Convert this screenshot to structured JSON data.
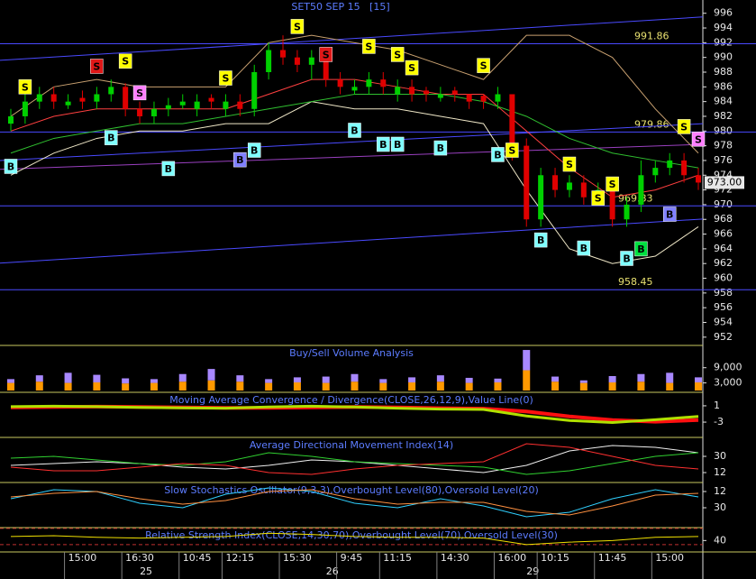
{
  "chart_data": [
    {
      "type": "candlestick",
      "title": "SET50 SEP 15   [15]",
      "categories": [
        null,
        null,
        null,
        null,
        "15:00",
        null,
        null,
        null,
        "16:30",
        null,
        null,
        null,
        "10:45",
        null,
        null,
        "12:15",
        null,
        null,
        null,
        "15:30",
        null,
        null,
        null,
        "9:45",
        null,
        null,
        "11:15",
        null,
        null,
        null,
        "14:30",
        null,
        null,
        null,
        "16:00",
        null,
        null,
        "10:15",
        null,
        null,
        null,
        "11:45",
        null,
        null,
        null,
        "15:00",
        null,
        null,
        null
      ],
      "dates": [
        null,
        null,
        null,
        null,
        null,
        null,
        null,
        null,
        null,
        "25",
        null,
        null,
        null,
        null,
        null,
        null,
        null,
        null,
        null,
        null,
        null,
        null,
        "26",
        null,
        null,
        null,
        null,
        null,
        null,
        null,
        null,
        null,
        null,
        null,
        null,
        null,
        "29",
        null,
        null,
        null,
        null,
        null,
        null,
        null,
        null,
        null,
        null,
        null,
        null
      ],
      "open": [
        981,
        982,
        984,
        985,
        983.5,
        984.5,
        984,
        985,
        986,
        983,
        982,
        983,
        983.5,
        983,
        984.5,
        983,
        984,
        983,
        988,
        991,
        990,
        989,
        990,
        987,
        985.5,
        986,
        987,
        985,
        986,
        985.5,
        984.5,
        985.5,
        985,
        984.8,
        984,
        985,
        978,
        968,
        974,
        972,
        973,
        971,
        972,
        968,
        970,
        974,
        975,
        976,
        974
      ],
      "high": [
        983,
        985,
        986,
        986,
        985,
        985.5,
        986,
        987,
        986.5,
        984,
        984,
        984.5,
        985,
        985,
        985,
        985,
        985,
        989,
        992,
        993,
        991,
        991,
        990,
        988,
        987,
        988,
        988,
        987,
        987,
        986,
        986,
        986,
        985,
        985,
        986,
        985,
        979,
        975,
        975,
        974,
        974,
        973,
        973,
        971,
        976,
        976,
        977,
        977,
        975
      ],
      "low": [
        980,
        981,
        983,
        983,
        983,
        983,
        983,
        984,
        982,
        981,
        981,
        982,
        983,
        982,
        983,
        982,
        982,
        982,
        987,
        989,
        988,
        987,
        986,
        985,
        985,
        985,
        985,
        984,
        984,
        984,
        984,
        984,
        983,
        983,
        983,
        976,
        967,
        967,
        971,
        971,
        970,
        970,
        967,
        967,
        969,
        973,
        974,
        973,
        972
      ],
      "close": [
        982,
        984,
        985,
        984,
        984,
        984,
        985,
        986,
        983,
        982,
        983,
        983.5,
        984,
        984,
        984,
        984,
        983,
        988,
        991,
        990,
        989,
        990,
        987,
        986,
        986,
        987,
        986,
        986,
        985,
        985,
        985,
        985,
        984,
        984,
        985,
        978,
        968,
        974,
        972,
        973,
        971,
        972,
        968,
        970,
        974,
        975,
        976,
        974,
        973
      ],
      "up_color": "#00d000",
      "down_color": "#e00000",
      "overlays": [
        {
          "color": "#c8a070",
          "values": [
            982,
            986,
            987,
            986,
            986,
            986,
            992,
            993,
            992,
            991,
            989,
            987,
            993,
            993,
            990,
            983,
            977
          ]
        },
        {
          "color": "#f0e8c8",
          "values": [
            974,
            977,
            979,
            980,
            980,
            981,
            981,
            984,
            983,
            983,
            982,
            981,
            972,
            964,
            962,
            963,
            967
          ]
        },
        {
          "color": "#ff4040",
          "values": [
            980,
            982,
            983,
            983,
            983,
            983,
            985,
            987,
            987,
            986,
            985,
            985,
            980,
            975,
            971,
            972,
            974
          ]
        },
        {
          "color": "#30c030",
          "values": [
            977,
            979,
            980,
            981,
            981,
            982,
            983,
            984,
            985,
            985,
            985,
            984,
            982,
            979,
            977,
            976,
            975
          ]
        }
      ],
      "levels": [
        991.86,
        979.86,
        969.83,
        958.45
      ],
      "level_color": "#4a4aff",
      "trendlines": [
        {
          "y_start": 989.6,
          "y_end": 995.5,
          "color": "#4a4aff"
        },
        {
          "y_start": 962.05,
          "y_end": 968.05,
          "color": "#4a4aff"
        },
        {
          "y_start": 976,
          "y_end": 981,
          "color": "#4a4aff"
        },
        {
          "y_start": 974.8,
          "y_end": 978.2,
          "color": "#9a40c0"
        }
      ],
      "last_price": {
        "value": 973,
        "label": "973.00"
      },
      "signals": [
        {
          "label": "S",
          "index": 1,
          "price": 986,
          "color": "#ffff00"
        },
        {
          "label": "S",
          "index": 6,
          "price": 988.8,
          "color": "#e01818"
        },
        {
          "label": "S",
          "index": 8,
          "price": 989.5,
          "color": "#ffff00"
        },
        {
          "label": "S",
          "index": 9,
          "price": 985.2,
          "color": "#ff80ff"
        },
        {
          "label": "B",
          "index": 7,
          "price": 979.1,
          "color": "#80ffff"
        },
        {
          "label": "B",
          "index": 0,
          "price": 975.2,
          "color": "#80ffff"
        },
        {
          "label": "B",
          "index": 11,
          "price": 974.9,
          "color": "#80ffff"
        },
        {
          "label": "S",
          "index": 15,
          "price": 987.2,
          "color": "#ffff00"
        },
        {
          "label": "B",
          "index": 16,
          "price": 976.1,
          "color": "#8080ff"
        },
        {
          "label": "B",
          "index": 17,
          "price": 977.4,
          "color": "#80ffff"
        },
        {
          "label": "S",
          "index": 20,
          "price": 994.2,
          "color": "#ffff00"
        },
        {
          "label": "S",
          "index": 22,
          "price": 990.4,
          "color": "#e01818"
        },
        {
          "label": "S",
          "index": 25,
          "price": 991.5,
          "color": "#ffff00"
        },
        {
          "label": "S",
          "index": 27,
          "price": 990.4,
          "color": "#ffff00"
        },
        {
          "label": "S",
          "index": 28,
          "price": 988.6,
          "color": "#ffff00"
        },
        {
          "label": "B",
          "index": 24,
          "price": 980.1,
          "color": "#80ffff"
        },
        {
          "label": "B",
          "index": 26,
          "price": 978.2,
          "color": "#80ffff"
        },
        {
          "label": "B",
          "index": 27,
          "price": 978.2,
          "color": "#80ffff"
        },
        {
          "label": "B",
          "index": 30,
          "price": 977.7,
          "color": "#80ffff"
        },
        {
          "label": "S",
          "index": 33,
          "price": 988.9,
          "color": "#ffff00"
        },
        {
          "label": "B",
          "index": 34,
          "price": 976.8,
          "color": "#80ffff"
        },
        {
          "label": "S",
          "index": 35,
          "price": 977.4,
          "color": "#ffff00"
        },
        {
          "label": "B",
          "index": 37,
          "price": 965.2,
          "color": "#80ffff"
        },
        {
          "label": "S",
          "index": 39,
          "price": 975.5,
          "color": "#ffff00"
        },
        {
          "label": "B",
          "index": 40,
          "price": 964.1,
          "color": "#80ffff"
        },
        {
          "label": "S",
          "index": 41,
          "price": 970.9,
          "color": "#ffff00"
        },
        {
          "label": "S",
          "index": 42,
          "price": 972.8,
          "color": "#ffff00"
        },
        {
          "label": "B",
          "index": 43,
          "price": 962.7,
          "color": "#80ffff"
        },
        {
          "label": "B",
          "index": 44,
          "price": 964,
          "color": "#00e040"
        },
        {
          "label": "B",
          "index": 46,
          "price": 968.7,
          "color": "#8080ff"
        },
        {
          "label": "S",
          "index": 47,
          "price": 980.6,
          "color": "#ffff00"
        },
        {
          "label": "S",
          "index": 48,
          "price": 978.9,
          "color": "#ff80ff"
        }
      ],
      "ylim": [
        951,
        997.8
      ],
      "yticks": [
        952,
        954,
        956,
        958,
        960,
        962,
        964,
        966,
        968,
        970,
        972,
        974,
        976,
        978,
        980,
        982,
        984,
        986,
        988,
        990,
        992,
        994,
        996
      ]
    },
    {
      "type": "stacked_bar",
      "title": "Buy/Sell Volume Analysis",
      "series": [
        {
          "color": "#ff9900",
          "values": [
            3000,
            3500,
            3000,
            3200,
            2800,
            3000,
            3500,
            4000,
            3500,
            3000,
            3200,
            3000,
            3500,
            3000,
            3200,
            3500,
            3000,
            3200,
            8000,
            3500,
            3000,
            3200,
            3500,
            3000,
            3200
          ]
        },
        {
          "color": "#a888ff",
          "values": [
            1500,
            2500,
            4000,
            3000,
            2000,
            1500,
            3000,
            4500,
            2500,
            1500,
            2000,
            2500,
            3000,
            1500,
            2000,
            2500,
            2000,
            1500,
            8000,
            2000,
            1000,
            2500,
            3000,
            4000,
            2000
          ]
        }
      ],
      "ylim": [
        0,
        17800
      ],
      "yticks": [
        {
          "value": 9000,
          "label": "9,000"
        },
        {
          "value": 3000,
          "label": "3,000"
        }
      ]
    },
    {
      "type": "line",
      "title": "Moving Average Convergence / Divergence(CLOSE,26,12,9),Value Line(0)",
      "series": [
        {
          "color": "#ff1010",
          "width": 4,
          "values": [
            0.6,
            0.7,
            0.8,
            0.7,
            0.6,
            0.5,
            0.5,
            0.6,
            0.7,
            0.6,
            0.4,
            0.3,
            -0.4,
            -1.6,
            -2.5,
            -2.9,
            -2.5
          ]
        },
        {
          "color": "#b0e000",
          "width": 3,
          "values": [
            0.8,
            0.9,
            0.8,
            0.6,
            0.5,
            0.4,
            0.7,
            0.9,
            0.7,
            0.4,
            0.2,
            0.1,
            -1.5,
            -2.6,
            -3.1,
            -2.4,
            -1.6
          ]
        }
      ],
      "ylim": [
        -6.3,
        4.3
      ],
      "yticks": [
        1,
        -3
      ]
    },
    {
      "type": "line",
      "title": "Average Directional Movement Index(14)",
      "series": [
        {
          "color": "#f0f0f0",
          "width": 1,
          "values": [
            20,
            22,
            24,
            22,
            18,
            16,
            20,
            26,
            24,
            20,
            16,
            12,
            20,
            36,
            42,
            40,
            34
          ]
        },
        {
          "color": "#30d030",
          "width": 1,
          "values": [
            28,
            30,
            26,
            22,
            20,
            24,
            34,
            30,
            24,
            22,
            20,
            18,
            10,
            14,
            22,
            30,
            34
          ]
        },
        {
          "color": "#ff3030",
          "width": 1,
          "values": [
            18,
            14,
            14,
            18,
            22,
            20,
            12,
            10,
            16,
            20,
            22,
            24,
            44,
            40,
            30,
            20,
            16
          ]
        }
      ],
      "ylim": [
        3,
        51
      ],
      "yticks": [
        30,
        12
      ]
    },
    {
      "type": "line",
      "title": "Slow Stochastics Oscillator(9,3,3),Overbought Level(80),Oversold Level(20)",
      "series": [
        {
          "color": "#30d0ff",
          "width": 1,
          "values": [
            20,
            10,
            12,
            25,
            30,
            15,
            8,
            12,
            25,
            30,
            20,
            28,
            40,
            35,
            20,
            10,
            18
          ]
        },
        {
          "color": "#ff9040",
          "width": 1,
          "values": [
            18,
            14,
            12,
            20,
            26,
            22,
            12,
            10,
            20,
            26,
            24,
            24,
            34,
            38,
            28,
            16,
            14
          ]
        }
      ],
      "ylim": [
        50,
        2
      ],
      "yticks": [
        12,
        30
      ]
    },
    {
      "type": "line",
      "title": "Relative Strength Index(CLOSE,14,30,70),Overbought Level(70),Oversold Level(30)",
      "series": [
        {
          "color": "#f0e000",
          "width": 1,
          "values": [
            50,
            52,
            48,
            46,
            48,
            50,
            58,
            55,
            50,
            48,
            48,
            46,
            30,
            36,
            40,
            48,
            50
          ]
        }
      ],
      "levels": [
        70,
        30
      ],
      "level_color": "#c03030",
      "ylim": [
        14,
        72
      ],
      "yticks": [
        40
      ]
    }
  ]
}
